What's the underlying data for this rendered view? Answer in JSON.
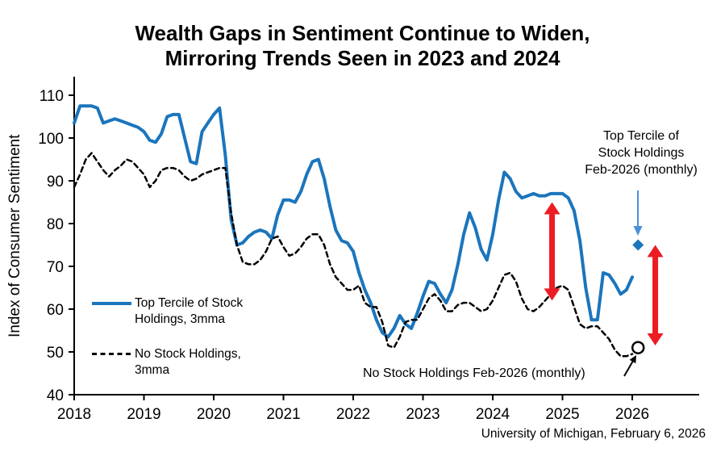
{
  "title": {
    "line1": "Wealth Gaps in Sentiment Continue to Widen,",
    "line2": "Mirroring Trends Seen in 2023 and 2024"
  },
  "y_axis_label": "Index of Consumer Sentiment",
  "legend": {
    "top_tercile": "Top Tercile of Stock\nHoldings, 3mma",
    "no_stock": "No Stock Holdings,\n3mma"
  },
  "annotations": {
    "top_tercile_monthly": "Top Tercile of\nStock Holdings\nFeb-2026 (monthly)",
    "no_stock_monthly": "No Stock Holdings Feb-2026 (monthly)"
  },
  "source": "University of Michigan, February 6, 2026",
  "colors": {
    "top_tercile_blue": "#1B75BC",
    "no_stock_black": "#000000",
    "gap_arrow_red": "#EC1C24",
    "annotation_arrow_blue": "#4A90D9",
    "axis_black": "#000000"
  },
  "chart_data": {
    "type": "line",
    "title": "Wealth Gaps in Sentiment Continue to Widen, Mirroring Trends Seen in 2023 and 2024",
    "xlabel": "",
    "ylabel": "Index of Consumer Sentiment",
    "ylim": [
      40,
      110
    ],
    "y_ticks": [
      40,
      50,
      60,
      70,
      80,
      90,
      100,
      110
    ],
    "x_ticks": [
      2018,
      2019,
      2020,
      2021,
      2022,
      2023,
      2024,
      2025,
      2026
    ],
    "x_start": "2018-01",
    "frequency": "monthly",
    "grid": false,
    "series": [
      {
        "name": "Top Tercile of Stock Holdings, 3mma",
        "style": "solid",
        "color": "#1B75BC",
        "values": [
          103.5,
          107.5,
          107.5,
          107.5,
          107,
          103.5,
          104,
          104.5,
          104,
          103.5,
          103,
          102.5,
          101.5,
          99.5,
          99,
          101,
          105,
          105.5,
          105.5,
          100,
          94.5,
          94,
          101.5,
          103.5,
          105.5,
          107,
          96,
          81,
          75,
          75.5,
          77,
          78,
          78.5,
          78,
          76.5,
          82,
          85.5,
          85.5,
          85,
          87.5,
          91.5,
          94.5,
          95,
          90.5,
          84,
          78.5,
          76,
          75.5,
          73.5,
          68.5,
          64.5,
          61.5,
          57.5,
          54.5,
          53.5,
          55.5,
          58.5,
          56.5,
          55.5,
          59,
          63,
          66.5,
          66,
          63.5,
          61.5,
          64.5,
          70.5,
          77.5,
          82.5,
          79,
          74,
          71.5,
          77.5,
          85.5,
          92,
          90.5,
          87.5,
          86,
          86.5,
          87,
          86.5,
          86.5,
          87,
          87,
          87,
          86,
          83,
          76,
          65,
          57.5,
          57.5,
          68.5,
          68,
          66,
          63.5,
          64.5,
          67.5
        ]
      },
      {
        "name": "No Stock Holdings, 3mma",
        "style": "dashed",
        "color": "#000000",
        "values": [
          88.5,
          91.5,
          95,
          96.5,
          94.5,
          92.5,
          91,
          92.5,
          93.5,
          95,
          94.5,
          93,
          91.5,
          88.5,
          90,
          92.5,
          93,
          93,
          92.5,
          91,
          90,
          90.5,
          91.5,
          92,
          92.5,
          93,
          93,
          82.5,
          75,
          71,
          70.5,
          70.5,
          71.5,
          73.5,
          76.5,
          77,
          74.5,
          72.5,
          73,
          74.5,
          76.5,
          77.5,
          77.5,
          75,
          70.5,
          67.5,
          66,
          64.5,
          64.5,
          65.5,
          61.5,
          60.5,
          60.5,
          57,
          51.5,
          51,
          53.5,
          57,
          57.5,
          57.5,
          60,
          62.5,
          63.5,
          62,
          59.5,
          59.5,
          61,
          61.5,
          61.5,
          60.5,
          59.5,
          60,
          62,
          65,
          68,
          68.5,
          66.5,
          62.5,
          60,
          59.5,
          60.5,
          62,
          63.5,
          65,
          65.5,
          64.5,
          60.5,
          56.5,
          55.5,
          56,
          56,
          54.5,
          53,
          50.5,
          49,
          49,
          49.5
        ]
      }
    ],
    "point_markers": [
      {
        "label": "Top Tercile of Stock Holdings Feb-2026 (monthly)",
        "date": "2026-02",
        "value": 75,
        "marker": "filled-diamond",
        "color": "#1B75BC"
      },
      {
        "label": "No Stock Holdings Feb-2026 (monthly)",
        "date": "2026-02",
        "value": 51,
        "marker": "open-circle",
        "color": "#000000"
      }
    ],
    "gap_arrows": [
      {
        "x": 2024.85,
        "from": 62,
        "to": 85
      },
      {
        "x": 2026.33,
        "from": 51.5,
        "to": 75
      }
    ]
  }
}
